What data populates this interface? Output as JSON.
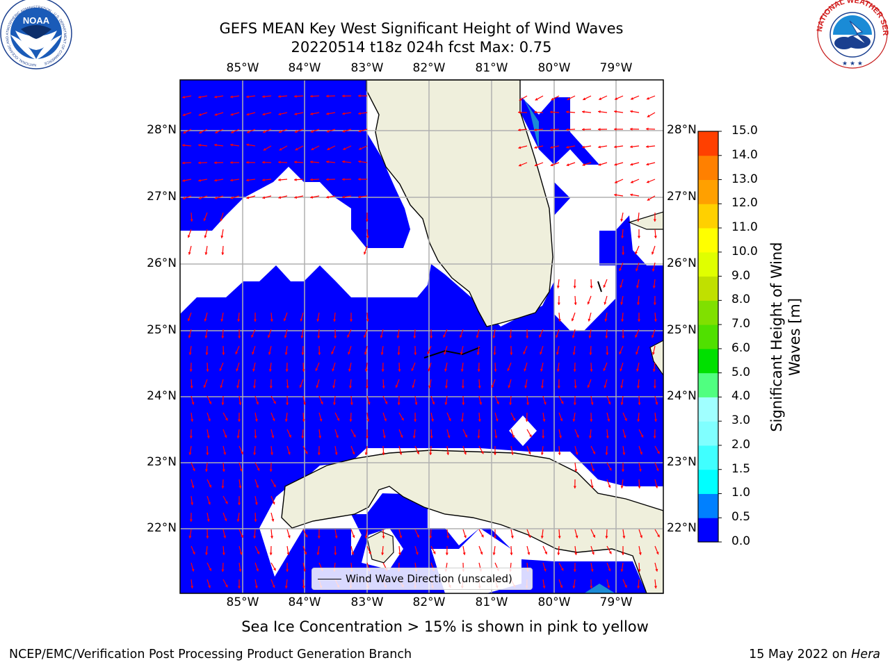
{
  "header": {
    "title_line1": "GEFS MEAN Key West Significant Height of Wind Waves",
    "title_line2": "20220514 t18z 024h fcst   Max: 0.75"
  },
  "logos": {
    "noaa_text": "NOAA",
    "noaa_ring": "NATIONAL OCEANIC AND ATMOSPHERIC ADMINISTRATION · U.S. DEPARTMENT OF COMMERCE",
    "nws_ring": "NATIONAL WEATHER SERVICE"
  },
  "map": {
    "lon_labels": [
      "85°W",
      "84°W",
      "83°W",
      "82°W",
      "81°W",
      "80°W",
      "79°W"
    ],
    "lat_labels": [
      "28°N",
      "27°N",
      "26°N",
      "25°N",
      "24°N",
      "23°N",
      "22°N"
    ],
    "legend_label": "Wind Wave Direction (unscaled)",
    "ocean_color": "#0000ff",
    "land_color": "#efefdc",
    "arrow_color": "#ff0000"
  },
  "colorbar": {
    "title_line1": "Significant Height of Wind",
    "title_line2": "Waves [m]",
    "tick_labels": [
      "0.0",
      "0.5",
      "1.0",
      "1.5",
      "2.0",
      "3.0",
      "4.0",
      "5.0",
      "6.0",
      "7.0",
      "8.0",
      "9.0",
      "10.0",
      "11.0",
      "12.0",
      "13.0",
      "14.0",
      "15.0"
    ],
    "colors": [
      "#0000ff",
      "#0080ff",
      "#00ffff",
      "#40ffff",
      "#80ffff",
      "#a0ffff",
      "#50ff80",
      "#00e000",
      "#50e000",
      "#80e000",
      "#c0e000",
      "#e0ff00",
      "#ffff00",
      "#ffd000",
      "#ffa000",
      "#ff8000",
      "#ff4000",
      "#ff0000"
    ]
  },
  "notes": {
    "sea_ice": "Sea Ice Concentration > 15% is shown in pink to yellow",
    "footer_left": "NCEP/EMC/Verification Post Processing Product Generation Branch",
    "footer_right_prefix": "15 May 2022 on ",
    "footer_right_host": "Hera"
  }
}
